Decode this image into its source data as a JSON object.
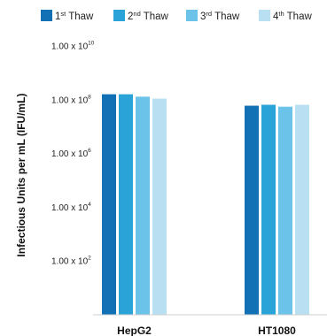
{
  "chart_data": {
    "type": "bar",
    "ylabel": "Infectious Units per mL (IFU/mL)",
    "yscale": "log",
    "ylim": [
      1,
      10000000000
    ],
    "grid": false,
    "legend_position": "top",
    "categories": [
      "HepG2",
      "HT1080"
    ],
    "y_ticks": [
      {
        "value": 100,
        "base": "1.00 x 10",
        "exp": "2"
      },
      {
        "value": 10000,
        "base": "1.00 x 10",
        "exp": "4"
      },
      {
        "value": 1000000,
        "base": "1.00 x 10",
        "exp": "6"
      },
      {
        "value": 100000000,
        "base": "1.00 x 10",
        "exp": "8"
      },
      {
        "value": 10000000000,
        "base": "1.00 x 10",
        "exp": "10"
      }
    ],
    "series": [
      {
        "name": "1st Thaw",
        "label_num": "1",
        "label_sup": "st",
        "label_rest": " Thaw",
        "color": "#1270b4",
        "values": [
          160000000,
          60000000
        ]
      },
      {
        "name": "2nd Thaw",
        "label_num": "2",
        "label_sup": "nd",
        "label_rest": " Thaw",
        "color": "#2aa4d8",
        "values": [
          160000000,
          65000000
        ]
      },
      {
        "name": "3rd Thaw",
        "label_num": "3",
        "label_sup": "rd",
        "label_rest": " Thaw",
        "color": "#6cc3ea",
        "values": [
          130000000,
          55000000
        ]
      },
      {
        "name": "4th Thaw",
        "label_num": "4",
        "label_sup": "th",
        "label_rest": " Thaw",
        "color": "#b9dff2",
        "values": [
          110000000,
          65000000
        ]
      }
    ]
  }
}
